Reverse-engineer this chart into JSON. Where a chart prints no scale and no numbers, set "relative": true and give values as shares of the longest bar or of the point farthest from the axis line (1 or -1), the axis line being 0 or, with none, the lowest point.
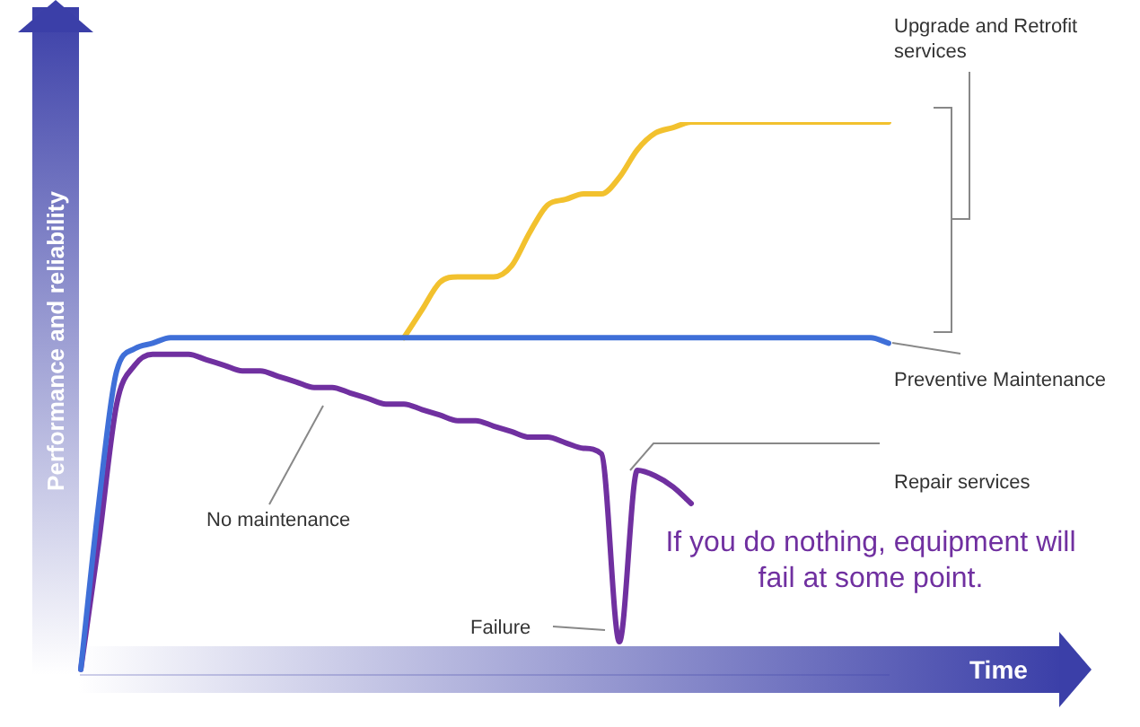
{
  "chart_data": {
    "type": "line",
    "relative": true,
    "xlabel": "Time",
    "ylabel": "Performance and reliability",
    "categories": [
      null,
      null,
      null,
      null,
      null,
      null,
      null,
      null,
      null,
      null,
      null,
      null,
      null,
      null,
      null,
      null,
      null,
      null,
      null,
      null,
      null,
      null,
      null,
      null,
      null,
      null,
      null,
      null,
      null,
      null,
      null,
      null,
      null,
      null,
      null,
      null,
      null,
      null,
      null,
      null,
      null,
      null,
      null,
      null,
      null,
      null
    ],
    "series": [
      {
        "color": "#3f6fd8",
        "values": [
          0.01,
          0.31,
          0.55,
          0.59,
          0.6,
          0.61,
          0.61,
          0.61,
          0.61,
          0.61,
          0.61,
          0.61,
          0.61,
          0.61,
          0.61,
          0.61,
          0.61,
          0.61,
          0.61,
          0.61,
          0.61,
          0.61,
          0.61,
          0.61,
          0.61,
          0.61,
          0.61,
          0.61,
          0.61,
          0.61,
          0.61,
          0.61,
          0.61,
          0.61,
          0.61,
          0.61,
          0.61,
          0.61,
          0.61,
          0.61,
          0.61,
          0.61,
          0.61,
          0.61,
          0.61,
          0.6
        ]
      },
      {
        "color": "#7030a0",
        "values": [
          0.01,
          0.24,
          0.49,
          0.56,
          0.58,
          0.58,
          0.58,
          0.57,
          0.56,
          0.55,
          0.55,
          0.54,
          0.53,
          0.52,
          0.52,
          0.51,
          0.5,
          0.49,
          0.49,
          0.48,
          0.47,
          0.46,
          0.46,
          0.45,
          0.44,
          0.43,
          0.43,
          0.42,
          0.41,
          0.4,
          0.06,
          0.37,
          0.36,
          0.34,
          0.31,
          null,
          null,
          null,
          null,
          null,
          null,
          null,
          null,
          null,
          null,
          null
        ]
      },
      {
        "color": "#f2c12e",
        "values": [
          null,
          null,
          null,
          null,
          null,
          null,
          null,
          null,
          null,
          null,
          null,
          null,
          null,
          null,
          null,
          null,
          null,
          null,
          0.61,
          0.66,
          0.71,
          0.72,
          0.72,
          0.72,
          0.74,
          0.8,
          0.85,
          0.86,
          0.87,
          0.87,
          0.9,
          0.95,
          0.98,
          0.99,
          1,
          1,
          1,
          1,
          1,
          1,
          1,
          1,
          1,
          1,
          1,
          1
        ]
      }
    ],
    "annotations": [
      "Preventive Maintenance",
      "No maintenance",
      "Upgrade and Retrofit services",
      "Repair services",
      "If you do nothing, equipment will fail at some point.",
      "Failure"
    ]
  }
}
